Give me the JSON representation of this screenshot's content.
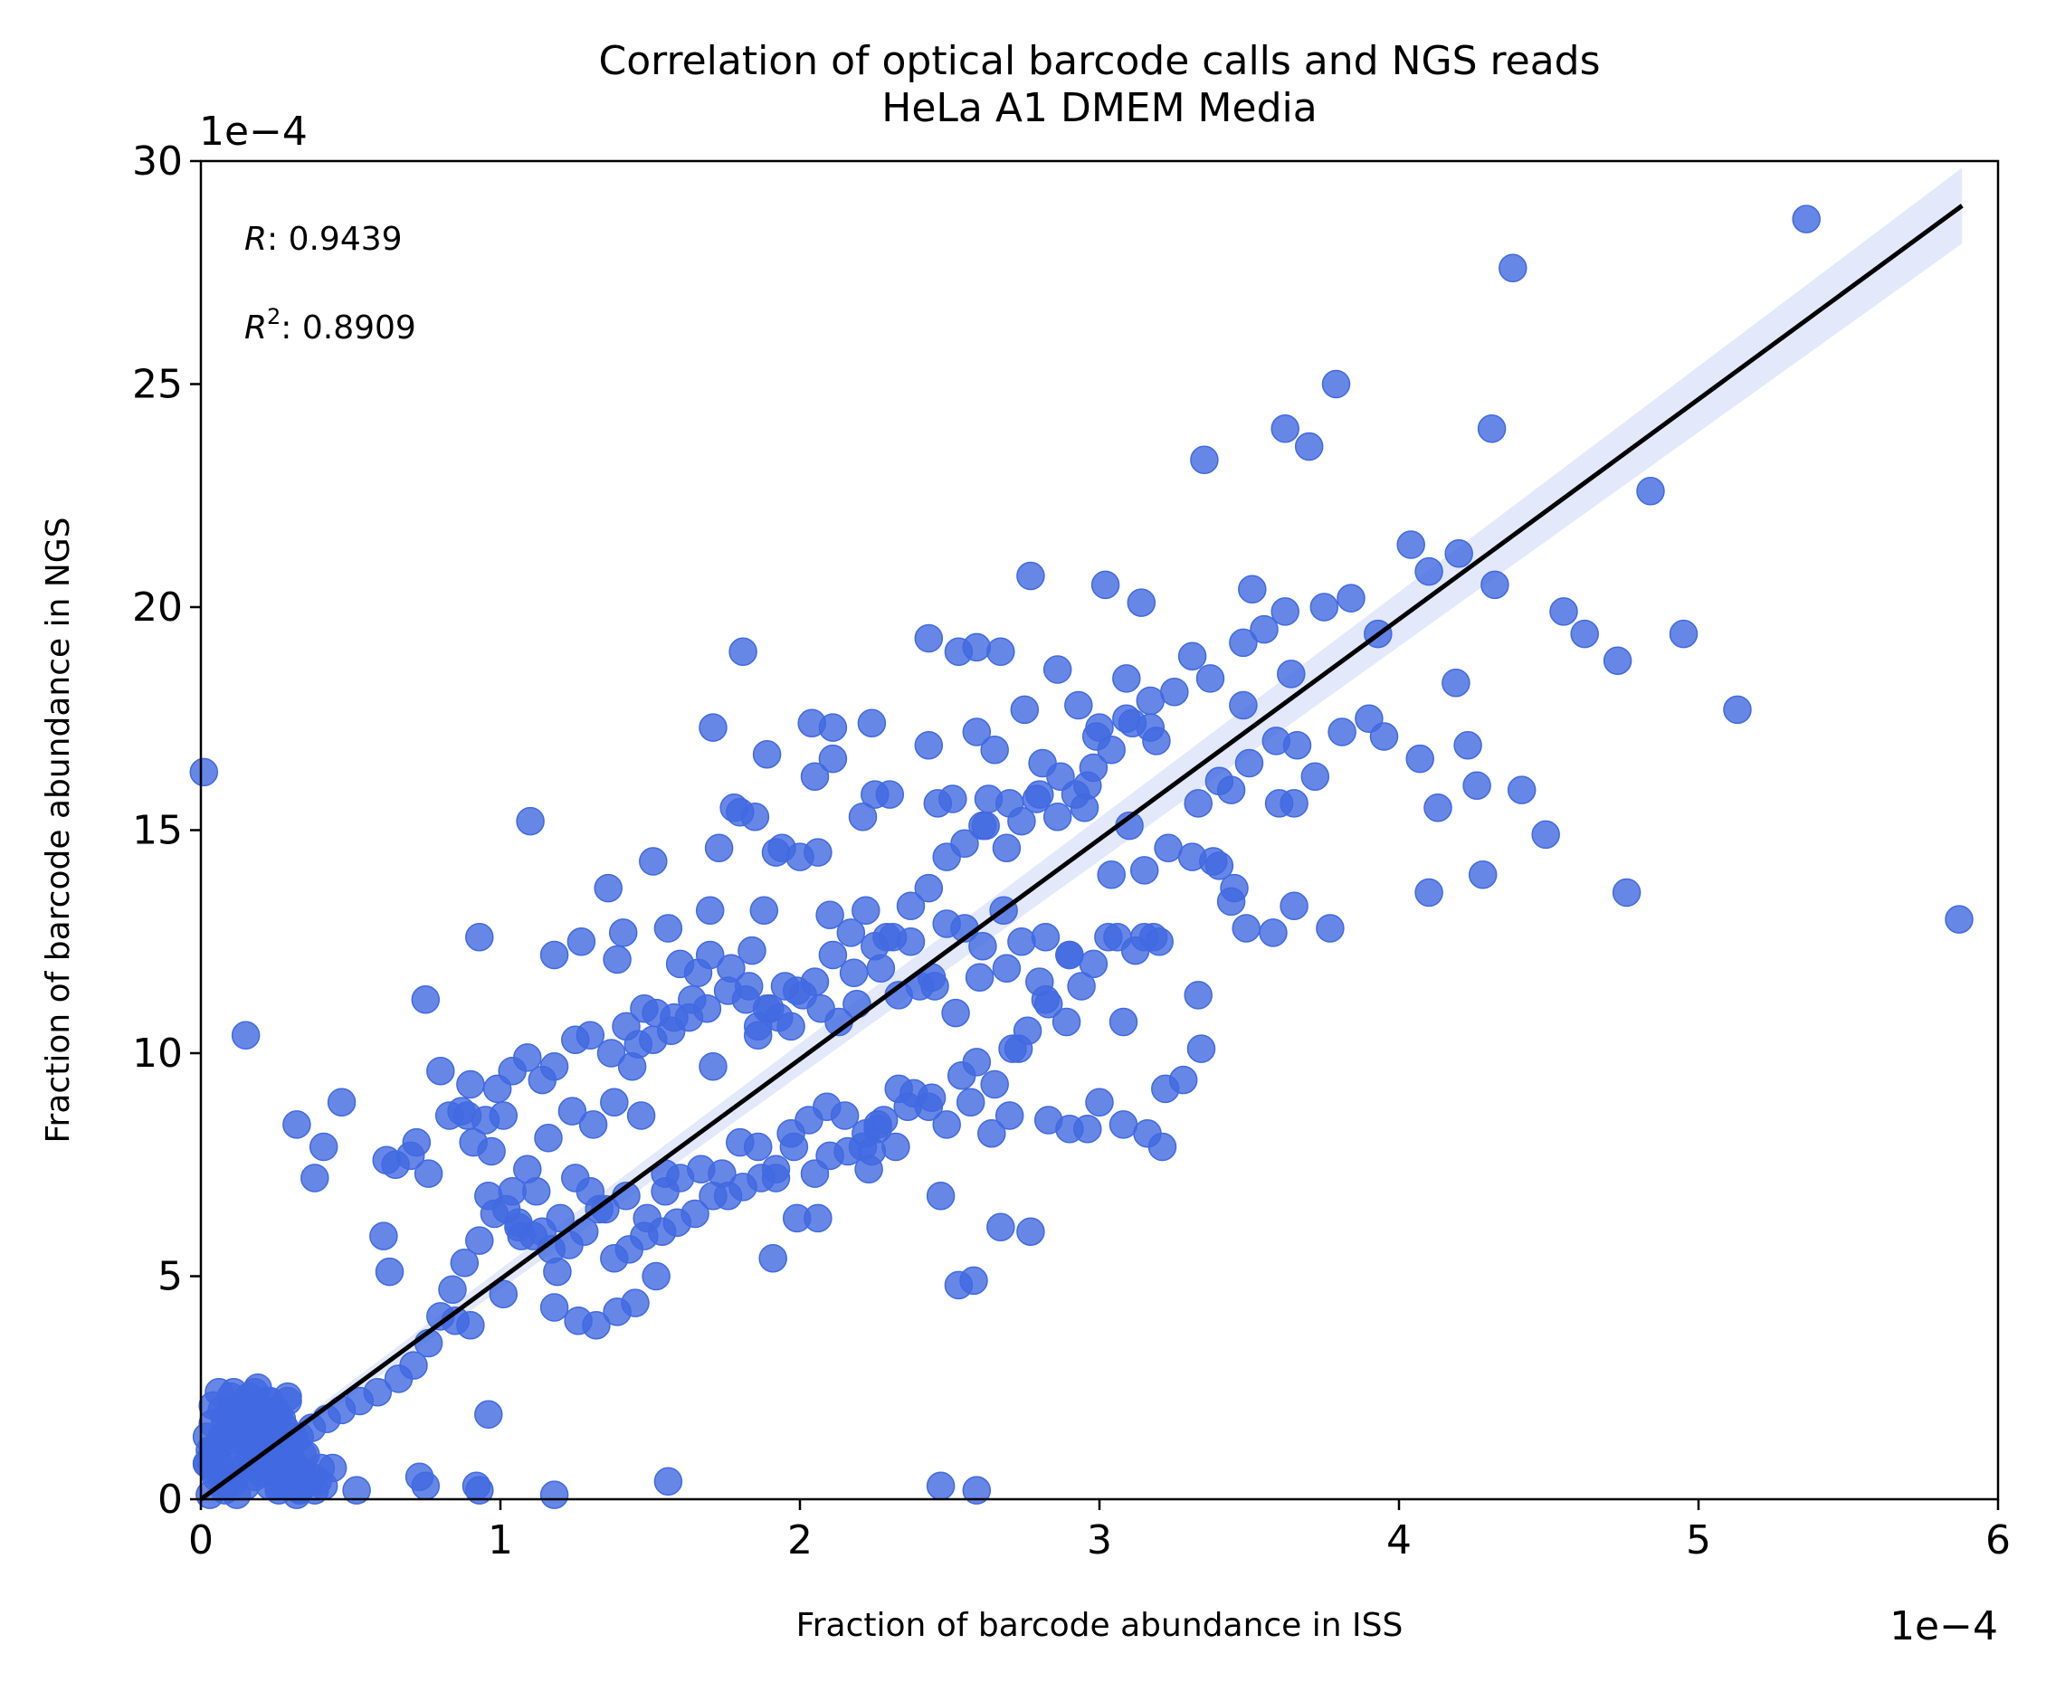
{
  "chart_data": {
    "type": "scatter",
    "title": [
      "Correlation of optical barcode calls and NGS reads",
      "HeLa A1 DMEM Media"
    ],
    "xlabel": "Fraction of barcode abundance in ISS",
    "ylabel": "Fraction of barcode abundance in NGS",
    "x_multiplier": "1e−4",
    "y_multiplier": "1e−4",
    "xlim": [
      0,
      6
    ],
    "ylim": [
      0,
      30
    ],
    "xticks": [
      0,
      1,
      2,
      3,
      4,
      5,
      6
    ],
    "yticks": [
      0,
      5,
      10,
      15,
      20,
      25,
      30
    ],
    "grid": false,
    "annotations": {
      "r_label": "R",
      "r_value": ": 0.9439",
      "r2_label": "R",
      "r2_sup": "2",
      "r2_value": ": 0.8909"
    },
    "colors": {
      "points": "#4169e1",
      "fit_line": "#000000",
      "ci_band": "#4169e1"
    },
    "regression": {
      "x": [
        0,
        5.88
      ],
      "y": [
        0,
        29.0
      ],
      "ci_start_halfwidth": 0.1,
      "ci_end_halfwidth": 0.85
    },
    "x": [
      5.36,
      4.38,
      3.79,
      3.62,
      4.31,
      3.7,
      3.35,
      4.84,
      4.04,
      4.2,
      4.1,
      2.77,
      3.02,
      3.14,
      4.32,
      3.51,
      3.75,
      3.84,
      3.62,
      4.55,
      4.62,
      4.95,
      3.93,
      3.48,
      3.31,
      3.37,
      4.73,
      3.64,
      4.19,
      2.43,
      1.81,
      2.59,
      2.53,
      2.67,
      3.09,
      2.86,
      2.93,
      2.75,
      3.0,
      3.25,
      3.17,
      3.09,
      3.19,
      5.13,
      2.59,
      2.24,
      1.71,
      2.11,
      2.04,
      2.11,
      2.99,
      2.65,
      2.81,
      2.63,
      2.46,
      1.89,
      3.4,
      3.5,
      3.6,
      3.65,
      3.72,
      3.33,
      3.44,
      3.9,
      3.95,
      4.13,
      4.23,
      4.07,
      4.26,
      4.41,
      4.49,
      3.48,
      3.55,
      3.66,
      3.59,
      3.81,
      2.43,
      2.3,
      2.25,
      2.21,
      2.05,
      1.92,
      1.85,
      1.8,
      1.78,
      1.73,
      2.51,
      2.61,
      2.7,
      2.79,
      2.86,
      2.95,
      2.96,
      3.1,
      3.15,
      3.04,
      3.23,
      3.31,
      3.38,
      3.45,
      5.87,
      4.76,
      4.1,
      4.28,
      3.65,
      3.58,
      3.44,
      3.49,
      3.18,
      3.15,
      3.03,
      3.2,
      3.33,
      3.4,
      3.77,
      0.01,
      0.15,
      0.47,
      0.93,
      1.1,
      1.18,
      1.27,
      1.36,
      1.39,
      1.41,
      1.48,
      1.51,
      1.56,
      1.6,
      1.66,
      1.7,
      1.84,
      1.88,
      1.94,
      2.0,
      2.06,
      2.1,
      2.17,
      2.22,
      2.29,
      2.37,
      2.44,
      2.49,
      2.55,
      2.61,
      2.68,
      2.74,
      2.82,
      2.9,
      2.98,
      3.06,
      3.12,
      2.9,
      2.8,
      2.69,
      2.6,
      2.52,
      2.45,
      2.4,
      2.33,
      2.27,
      2.19,
      2.13,
      2.07,
      2.01,
      1.95,
      1.9,
      1.86,
      1.82,
      1.76,
      1.69,
      1.63,
      1.57,
      1.52,
      1.46,
      1.42,
      1.37,
      1.3,
      1.25,
      1.18,
      1.14,
      1.09,
      1.04,
      0.99,
      0.95,
      0.9,
      0.87,
      0.83,
      0.8,
      0.75,
      0.7,
      0.65,
      0.62,
      0.61,
      0.63,
      0.72,
      0.76,
      0.38,
      0.41,
      0.32,
      0.91,
      0.96,
      1.02,
      1.06,
      1.12,
      1.2,
      1.25,
      1.3,
      1.35,
      1.42,
      1.49,
      1.55,
      1.6,
      1.67,
      1.74,
      1.8,
      1.86,
      1.92,
      1.97,
      2.03,
      2.09,
      2.15,
      2.21,
      2.26,
      2.32,
      2.38,
      2.43,
      2.49,
      2.54,
      2.59,
      2.65,
      2.71,
      2.76,
      2.83,
      2.89,
      2.94,
      3.0,
      3.08,
      3.16,
      3.21,
      2.96,
      2.83,
      2.7,
      2.57,
      2.44,
      2.36,
      2.28,
      2.22,
      2.16,
      2.1,
      2.05,
      1.98,
      1.92,
      1.87,
      1.81,
      1.76,
      1.71,
      1.65,
      1.59,
      1.54,
      1.48,
      1.43,
      1.38,
      1.33,
      1.28,
      1.23,
      1.17,
      1.11,
      1.06,
      1.01,
      0.96,
      0.9,
      0.85,
      1.18,
      1.47,
      1.55,
      1.91,
      1.99,
      2.06,
      2.24,
      2.26,
      2.23,
      2.33,
      2.47,
      2.64,
      2.77,
      2.9,
      3.08,
      2.82,
      2.73,
      2.67,
      2.58,
      2.53,
      1.52,
      1.45,
      1.39,
      1.32,
      1.26,
      1.19,
      1.14,
      1.07,
      1.01,
      0.97,
      0.89,
      1.71,
      1.86,
      1.93,
      1.99,
      2.05,
      2.11,
      2.18,
      2.25,
      2.31,
      2.37,
      2.43,
      2.49,
      2.55,
      2.62,
      2.69,
      2.74,
      2.8,
      2.87,
      2.92,
      2.98,
      3.04,
      3.11,
      3.17,
      3.22,
      3.28,
      3.34,
      1.97,
      1.89,
      1.83,
      1.77,
      1.7,
      1.64,
      1.58,
      1.51,
      1.44,
      1.38,
      1.31,
      1.24,
      1.16,
      1.09,
      1.04,
      0.98,
      0.93,
      0.88,
      0.84,
      0.8,
      0.76,
      0.71,
      0.66,
      0.59,
      0.53,
      0.47,
      0.42,
      0.37,
      0.33,
      0.3,
      0.27,
      0.24,
      0.21,
      0.18,
      0.15,
      0.12,
      0.09,
      0.06,
      0.03,
      0.02,
      0.04,
      0.07,
      0.1,
      0.13,
      0.16,
      0.19,
      0.22,
      0.25,
      0.28,
      0.31,
      0.34,
      0.36,
      0.33,
      0.29,
      0.26,
      0.23,
      0.2,
      0.17,
      0.14,
      0.11,
      0.08,
      0.05,
      0.03,
      0.06,
      0.09,
      0.12,
      0.15,
      0.18,
      0.21,
      0.24,
      0.27,
      0.3,
      0.33,
      0.38,
      0.4,
      0.35,
      0.31,
      0.28,
      0.25,
      0.22,
      0.19,
      0.16,
      0.13,
      0.1,
      0.07,
      0.04,
      0.02,
      0.05,
      0.08,
      0.11,
      0.14,
      0.17,
      0.2,
      0.23,
      0.26,
      0.29,
      0.32,
      0.28,
      0.24,
      0.2,
      0.16,
      0.12,
      0.08,
      0.04,
      0.06,
      0.1,
      0.14,
      0.18,
      0.22,
      0.26,
      0.3,
      0.34,
      0.31,
      0.27,
      0.23,
      0.19,
      0.15,
      0.11,
      0.07,
      0.03,
      0.09,
      0.13,
      0.17,
      0.21,
      0.25,
      0.29,
      0.33,
      0.37,
      0.02,
      0.05,
      0.08,
      0.11,
      0.14,
      0.17,
      0.2,
      0.23,
      0.26,
      0.29,
      0.32,
      0.35,
      0.39,
      0.41,
      0.44,
      0.52,
      0.73,
      0.75,
      0.92,
      1.56,
      2.47,
      2.59,
      1.18,
      0.93
    ],
    "y": [
      28.7,
      27.6,
      25.0,
      24.0,
      24.0,
      23.6,
      23.3,
      22.6,
      21.4,
      21.2,
      20.8,
      20.7,
      20.5,
      20.1,
      20.5,
      20.4,
      20.0,
      20.2,
      19.9,
      19.9,
      19.4,
      19.4,
      19.4,
      19.2,
      18.9,
      18.4,
      18.8,
      18.5,
      18.3,
      19.3,
      19.0,
      19.1,
      19.0,
      19.0,
      18.4,
      18.6,
      17.8,
      17.7,
      17.3,
      18.1,
      17.3,
      17.5,
      17.0,
      17.7,
      17.2,
      17.4,
      17.3,
      17.3,
      17.4,
      16.6,
      17.1,
      16.8,
      16.5,
      15.7,
      15.6,
      16.7,
      16.1,
      16.5,
      15.6,
      15.6,
      16.2,
      15.6,
      15.9,
      17.5,
      17.1,
      15.5,
      16.9,
      16.6,
      16.0,
      15.9,
      14.9,
      17.8,
      19.5,
      16.9,
      17.0,
      17.2,
      16.9,
      15.8,
      15.8,
      15.3,
      16.2,
      14.5,
      15.3,
      15.4,
      15.5,
      14.6,
      15.7,
      15.1,
      15.6,
      15.7,
      15.3,
      15.5,
      16.0,
      15.1,
      14.1,
      14.0,
      14.6,
      14.4,
      14.3,
      13.7,
      13.0,
      13.6,
      13.6,
      14.0,
      13.3,
      12.7,
      13.4,
      12.8,
      12.6,
      12.6,
      12.6,
      12.5,
      11.3,
      14.2,
      12.8,
      16.3,
      10.4,
      8.9,
      12.6,
      15.2,
      12.2,
      12.5,
      13.7,
      12.1,
      12.7,
      11.0,
      14.3,
      12.8,
      12.0,
      11.8,
      13.2,
      12.3,
      13.2,
      14.6,
      14.4,
      14.5,
      13.1,
      12.7,
      13.2,
      12.6,
      12.5,
      11.7,
      12.9,
      12.8,
      12.4,
      13.2,
      12.5,
      12.6,
      12.2,
      12.0,
      12.6,
      12.3,
      12.2,
      11.6,
      11.9,
      11.7,
      10.9,
      11.5,
      11.5,
      11.3,
      11.9,
      11.1,
      10.7,
      11.0,
      11.3,
      11.5,
      11.0,
      10.6,
      11.2,
      11.4,
      11.0,
      10.8,
      10.5,
      10.9,
      10.2,
      10.6,
      10.0,
      10.4,
      10.3,
      9.7,
      9.4,
      9.9,
      9.6,
      9.2,
      8.5,
      9.3,
      8.7,
      8.6,
      9.6,
      11.2,
      7.7,
      7.5,
      7.6,
      5.9,
      5.1,
      8.0,
      7.3,
      7.2,
      7.9,
      8.4,
      8.0,
      6.8,
      6.5,
      6.1,
      6.9,
      6.3,
      7.2,
      6.9,
      6.5,
      6.8,
      6.3,
      6.9,
      7.2,
      7.4,
      7.3,
      8.0,
      7.9,
      7.4,
      8.2,
      8.5,
      8.8,
      8.6,
      7.9,
      8.3,
      7.9,
      9.1,
      8.8,
      8.4,
      9.5,
      9.8,
      9.3,
      10.1,
      10.5,
      11.1,
      10.7,
      11.5,
      8.9,
      8.4,
      8.2,
      7.9,
      8.3,
      8.5,
      8.6,
      8.9,
      9.0,
      8.8,
      8.5,
      8.2,
      7.8,
      7.7,
      7.3,
      7.9,
      7.2,
      7.2,
      7.0,
      6.8,
      6.8,
      6.4,
      6.2,
      6.0,
      5.9,
      5.6,
      5.4,
      6.5,
      6.0,
      5.7,
      5.6,
      5.9,
      6.2,
      4.6,
      1.9,
      3.9,
      4.0,
      4.3,
      8.6,
      7.3,
      5.4,
      6.3,
      6.3,
      7.8,
      8.4,
      7.4,
      9.2,
      6.8,
      8.2,
      6.0,
      8.3,
      10.7,
      11.2,
      10.1,
      6.1,
      4.9,
      4.8,
      5.0,
      4.4,
      4.2,
      3.9,
      4.0,
      5.1,
      6.0,
      5.9,
      8.6,
      7.8,
      8.6,
      9.7,
      10.4,
      10.8,
      11.4,
      11.6,
      12.2,
      11.8,
      12.4,
      12.6,
      13.3,
      13.7,
      14.4,
      14.7,
      15.1,
      14.6,
      15.2,
      15.8,
      16.2,
      15.8,
      16.4,
      16.8,
      17.4,
      17.9,
      9.2,
      9.4,
      10.1,
      10.6,
      11.0,
      11.5,
      11.9,
      12.2,
      11.2,
      10.8,
      10.3,
      9.7,
      8.9,
      8.4,
      8.7,
      8.1,
      7.4,
      6.9,
      6.4,
      5.8,
      5.3,
      4.7,
      4.1,
      3.5,
      3.0,
      2.7,
      2.4,
      2.2,
      2.0,
      1.8,
      1.6,
      1.4,
      1.2,
      1.0,
      0.9,
      0.7,
      0.5,
      0.3,
      0.1,
      0.4,
      0.8,
      1.1,
      1.4,
      1.7,
      2.0,
      2.3,
      2.1,
      1.9,
      1.7,
      1.5,
      1.3,
      1.1,
      0.8,
      0.6,
      0.4,
      0.2,
      0.5,
      0.9,
      1.2,
      1.5,
      1.8,
      2.1,
      2.4,
      0.3,
      0.6,
      0.9,
      1.2,
      1.5,
      1.8,
      2.1,
      2.4,
      2.0,
      1.6,
      1.2,
      0.9,
      0.5,
      0.2,
      0.7,
      1.0,
      1.3,
      1.6,
      1.9,
      2.2,
      2.5,
      2.3,
      2.0,
      1.7,
      1.4,
      1.1,
      0.8,
      0.5,
      0.2,
      0.4,
      0.7,
      1.0,
      1.3,
      1.6,
      1.9,
      2.2,
      0.1,
      0.3,
      0.6,
      0.9,
      1.2,
      1.5,
      1.8,
      2.1,
      2.4,
      1.9,
      1.5,
      1.1,
      0.7,
      0.3,
      0.6,
      1.0,
      1.4,
      1.8,
      2.2,
      1.7,
      1.3,
      0.9,
      0.5,
      0.1,
      0.4,
      0.8,
      1.2,
      1.6,
      2.0,
      2.3,
      0.2,
      0.5,
      0.8,
      1.1,
      1.4,
      1.7,
      1.3,
      0.9,
      0.6,
      0.3,
      0.2,
      0.4,
      0.3,
      0.5,
      0.4,
      0.3,
      0.7,
      0.2,
      0.5,
      0.3,
      0.3,
      0.4,
      0.3,
      0.2,
      0.1,
      0.2
    ]
  }
}
